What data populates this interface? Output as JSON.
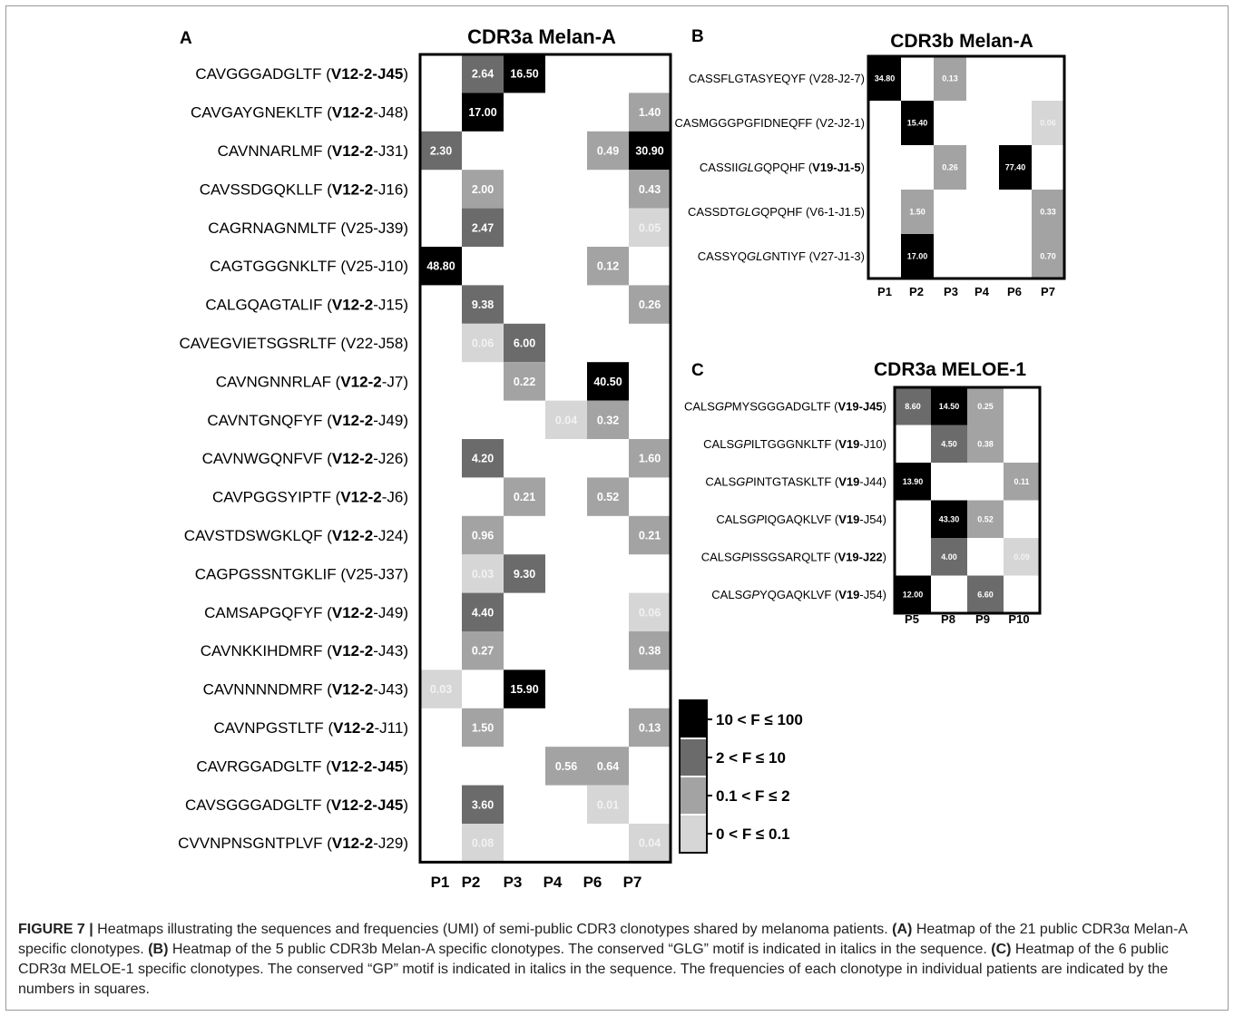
{
  "caption": {
    "figure_label": "FIGURE 7 |",
    "intro": "Heatmaps illustrating the sequences and frequencies (UMI) of semi-public CDR3 clonotypes shared by melanoma patients.",
    "a_label": "(A)",
    "a_text": "Heatmap of the 21 public CDR3α Melan-A specific clonotypes.",
    "b_label": "(B)",
    "b_text": "Heatmap of the 5 public CDR3b Melan-A specific clonotypes. The conserved “GLG” motif is indicated in italics in the sequence.",
    "c_label": "(C)",
    "c_text": "Heatmap of the 6 public CDR3α MELOE-1 specific clonotypes. The conserved “GP” motif is indicated in italics in the sequence. The frequencies of each clonotype in individual patients are indicated by the numbers in squares."
  },
  "colors": {
    "bin1": "#000000",
    "bin2": "#6b6b6b",
    "bin3": "#a3a3a3",
    "bin4": "#d6d6d6",
    "light_text": "#f2f2f2"
  },
  "legend": {
    "items": [
      {
        "label": "10 < F ≤ 100",
        "color": "#000000"
      },
      {
        "label": "2 < F ≤ 10",
        "color": "#6b6b6b"
      },
      {
        "label": "0.1 < F ≤ 2",
        "color": "#a3a3a3"
      },
      {
        "label": "0 < F ≤ 0.1",
        "color": "#d6d6d6"
      }
    ]
  },
  "chart_data": [
    {
      "type": "heatmap",
      "panel": "A",
      "title": "CDR3a Melan-A",
      "columns": [
        "P1",
        "P2",
        "P3",
        "P4",
        "P6",
        "P7"
      ],
      "rows": [
        {
          "seg": [
            [
              "CAVGGGADGLTF (",
              ""
            ],
            [
              "V12-2",
              "b"
            ],
            [
              "-J45",
              "b"
            ],
            [
              ")",
              ""
            ]
          ],
          "values": [
            null,
            2.64,
            16.5,
            null,
            null,
            null
          ]
        },
        {
          "seg": [
            [
              "CAVGAYGNEKLTF (",
              ""
            ],
            [
              "V12-2",
              "b"
            ],
            [
              "-J48)",
              ""
            ]
          ],
          "values": [
            null,
            17.0,
            null,
            null,
            null,
            1.4
          ]
        },
        {
          "seg": [
            [
              "CAVNNARLMF (",
              ""
            ],
            [
              "V12-2",
              "b"
            ],
            [
              "-J31)",
              ""
            ]
          ],
          "values": [
            2.3,
            null,
            null,
            null,
            0.49,
            30.9
          ]
        },
        {
          "seg": [
            [
              "CAVSSDGQKLLF (",
              ""
            ],
            [
              "V12-2",
              "b"
            ],
            [
              "-J16)",
              ""
            ]
          ],
          "values": [
            null,
            2.0,
            null,
            null,
            null,
            0.43
          ]
        },
        {
          "seg": [
            [
              "CAGRNAGNMLTF (V25-J39)",
              ""
            ]
          ],
          "values": [
            null,
            2.47,
            null,
            null,
            null,
            0.05
          ]
        },
        {
          "seg": [
            [
              "CAGTGGGNKLTF (V25-J10)",
              ""
            ]
          ],
          "values": [
            48.8,
            null,
            null,
            null,
            0.12,
            null
          ]
        },
        {
          "seg": [
            [
              "CALGQAGTALIF (",
              ""
            ],
            [
              "V12-2",
              "b"
            ],
            [
              "-J15)",
              ""
            ]
          ],
          "values": [
            null,
            9.38,
            null,
            null,
            null,
            0.26
          ]
        },
        {
          "seg": [
            [
              "CAVEGVIETSGSRLTF (V22-J58)",
              ""
            ]
          ],
          "values": [
            null,
            0.06,
            6.0,
            null,
            null,
            null
          ]
        },
        {
          "seg": [
            [
              "CAVNGNNRLAF (",
              ""
            ],
            [
              "V12-2",
              "b"
            ],
            [
              "-J7)",
              ""
            ]
          ],
          "values": [
            null,
            null,
            0.22,
            null,
            40.5,
            null
          ]
        },
        {
          "seg": [
            [
              "CAVNTGNQFYF (",
              ""
            ],
            [
              "V12-2",
              "b"
            ],
            [
              "-J49)",
              ""
            ]
          ],
          "values": [
            null,
            null,
            null,
            0.04,
            0.32,
            null
          ]
        },
        {
          "seg": [
            [
              "CAVNWGQNFVF (",
              ""
            ],
            [
              "V12-2",
              "b"
            ],
            [
              "-J26)",
              ""
            ]
          ],
          "values": [
            null,
            4.2,
            null,
            null,
            null,
            1.6
          ]
        },
        {
          "seg": [
            [
              "CAVPGGSYIPTF (",
              ""
            ],
            [
              "V12-2",
              "b"
            ],
            [
              "-J6)",
              ""
            ]
          ],
          "values": [
            null,
            null,
            0.21,
            null,
            0.52,
            null
          ]
        },
        {
          "seg": [
            [
              "CAVSTDSWGKLQF (",
              ""
            ],
            [
              "V12-2",
              "b"
            ],
            [
              "-J24)",
              ""
            ]
          ],
          "values": [
            null,
            0.96,
            null,
            null,
            null,
            0.21
          ]
        },
        {
          "seg": [
            [
              "CAGPGSSNTGKLIF (V25-J37)",
              ""
            ]
          ],
          "values": [
            null,
            0.03,
            9.3,
            null,
            null,
            null
          ]
        },
        {
          "seg": [
            [
              "CAMSAPGQFYF (",
              ""
            ],
            [
              "V12-2",
              "b"
            ],
            [
              "-J49)",
              ""
            ]
          ],
          "values": [
            null,
            4.4,
            null,
            null,
            null,
            0.06
          ]
        },
        {
          "seg": [
            [
              "CAVNKKIHDMRF (",
              ""
            ],
            [
              "V12-2",
              "b"
            ],
            [
              "-J43)",
              ""
            ]
          ],
          "values": [
            null,
            0.27,
            null,
            null,
            null,
            0.38
          ]
        },
        {
          "seg": [
            [
              "CAVNNNNDMRF (",
              ""
            ],
            [
              "V12-2",
              "b"
            ],
            [
              "-J43)",
              ""
            ]
          ],
          "values": [
            0.03,
            null,
            15.9,
            null,
            null,
            null
          ]
        },
        {
          "seg": [
            [
              "CAVNPGSTLTF (",
              ""
            ],
            [
              "V12-2",
              "b"
            ],
            [
              "-J11)",
              ""
            ]
          ],
          "values": [
            null,
            1.5,
            null,
            null,
            null,
            0.13
          ]
        },
        {
          "seg": [
            [
              "CAVRGGADGLTF (",
              ""
            ],
            [
              "V12-2",
              "b"
            ],
            [
              "-J45",
              "b"
            ],
            [
              ")",
              ""
            ]
          ],
          "values": [
            null,
            null,
            null,
            0.56,
            0.64,
            null
          ]
        },
        {
          "seg": [
            [
              "CAVSGGGADGLTF (",
              ""
            ],
            [
              "V12-2",
              "b"
            ],
            [
              "-J45",
              "b"
            ],
            [
              ")",
              ""
            ]
          ],
          "values": [
            null,
            3.6,
            null,
            null,
            0.01,
            null
          ]
        },
        {
          "seg": [
            [
              "CVVNPNSGNTPLVF (",
              ""
            ],
            [
              "V12-2",
              "b"
            ],
            [
              "-J29)",
              ""
            ]
          ],
          "values": [
            null,
            0.08,
            null,
            null,
            null,
            0.04
          ]
        }
      ]
    },
    {
      "type": "heatmap",
      "panel": "B",
      "title": "CDR3b Melan-A",
      "columns": [
        "P1",
        "P2",
        "P3",
        "P4",
        "P6",
        "P7"
      ],
      "rows": [
        {
          "seg": [
            [
              "CASSFLGTASYEQYF (V28-J2-7)",
              ""
            ]
          ],
          "values": [
            34.8,
            null,
            0.13,
            null,
            null,
            null
          ]
        },
        {
          "seg": [
            [
              "CASMGGGPGFIDNEQFF (V2-J2-1)",
              ""
            ]
          ],
          "values": [
            null,
            15.4,
            null,
            null,
            null,
            0.06
          ]
        },
        {
          "seg": [
            [
              "CASSII",
              ""
            ],
            [
              "GLG",
              "i"
            ],
            [
              "QPQHF (",
              ""
            ],
            [
              "V19-J1-5",
              "b"
            ],
            [
              ")",
              ""
            ]
          ],
          "values": [
            null,
            null,
            0.26,
            null,
            77.4,
            null
          ]
        },
        {
          "seg": [
            [
              "CASSDT",
              ""
            ],
            [
              "GLG",
              "i"
            ],
            [
              "QPQHF (V6-1-J1.5)",
              ""
            ]
          ],
          "values": [
            null,
            1.5,
            null,
            null,
            null,
            0.33
          ]
        },
        {
          "seg": [
            [
              "CASSYQ",
              ""
            ],
            [
              "GLG",
              "i"
            ],
            [
              "NTIYF (V27-J1-3)",
              ""
            ]
          ],
          "values": [
            null,
            17.0,
            null,
            null,
            null,
            0.7
          ]
        }
      ]
    },
    {
      "type": "heatmap",
      "panel": "C",
      "title": "CDR3a MELOE-1",
      "columns": [
        "P5",
        "P8",
        "P9",
        "P10"
      ],
      "rows": [
        {
          "seg": [
            [
              "CALS",
              ""
            ],
            [
              "GP",
              "i"
            ],
            [
              "MYSGGGADGLTF (",
              ""
            ],
            [
              "V19-J45",
              "b"
            ],
            [
              ")",
              ""
            ]
          ],
          "values": [
            8.6,
            14.5,
            0.25,
            null
          ]
        },
        {
          "seg": [
            [
              "CALS",
              ""
            ],
            [
              "GP",
              "i"
            ],
            [
              "ILTGGGNKLTF (",
              ""
            ],
            [
              "V19",
              "b"
            ],
            [
              "-J10)",
              ""
            ]
          ],
          "values": [
            null,
            4.5,
            0.38,
            null
          ]
        },
        {
          "seg": [
            [
              "CALS",
              ""
            ],
            [
              "GP",
              "i"
            ],
            [
              "INTGTASKLTF (",
              ""
            ],
            [
              "V19",
              "b"
            ],
            [
              "-J44)",
              ""
            ]
          ],
          "values": [
            13.9,
            null,
            null,
            0.11
          ]
        },
        {
          "seg": [
            [
              "CALS",
              ""
            ],
            [
              "GP",
              "i"
            ],
            [
              "IQGAQKLVF (",
              ""
            ],
            [
              "V19",
              "b"
            ],
            [
              "-J54)",
              ""
            ]
          ],
          "values": [
            null,
            43.3,
            0.52,
            null
          ]
        },
        {
          "seg": [
            [
              "CALS",
              ""
            ],
            [
              "GP",
              "i"
            ],
            [
              "ISSGSARQLTF (",
              ""
            ],
            [
              "V19-J22",
              "b"
            ],
            [
              ")",
              ""
            ]
          ],
          "values": [
            null,
            4.0,
            null,
            0.09
          ]
        },
        {
          "seg": [
            [
              "CALS",
              ""
            ],
            [
              "GP",
              "i"
            ],
            [
              "YQGAQKLVF (",
              ""
            ],
            [
              "V19",
              "b"
            ],
            [
              "-J54)",
              ""
            ]
          ],
          "values": [
            12.0,
            null,
            6.6,
            null
          ]
        }
      ]
    }
  ]
}
